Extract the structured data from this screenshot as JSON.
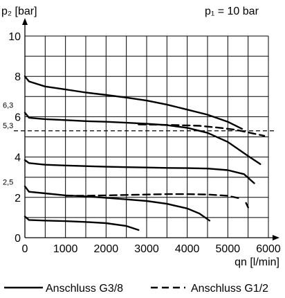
{
  "chart_data": {
    "type": "line",
    "ylabel": "p₂ [bar]",
    "xlabel": "qn [l/min]",
    "annotation": "p₁ = 10 bar",
    "xlim": [
      0,
      6000
    ],
    "ylim": [
      0,
      10
    ],
    "grid": true,
    "x_ticks": [
      "0",
      "1000",
      "2000",
      "3000",
      "4000",
      "5000",
      "6000"
    ],
    "y_ticks": [
      "0",
      "2",
      "4",
      "6",
      "8",
      "10"
    ],
    "extra_y_labels": [
      {
        "value": 6.3,
        "label": "6,3"
      },
      {
        "value": 5.3,
        "label": "5,3"
      },
      {
        "value": 2.5,
        "label": "2,5"
      }
    ],
    "reference_line": {
      "y": 5.3,
      "style": "dashed"
    },
    "legend": {
      "placement": "bottom",
      "entries": [
        {
          "label": "Anschluss G3/8",
          "style": "solid"
        },
        {
          "label": "Anschluss G1/2",
          "style": "dashed"
        }
      ]
    },
    "series": [
      {
        "style": "solid",
        "points": [
          [
            0,
            8.0
          ],
          [
            100,
            7.75
          ],
          [
            500,
            7.5
          ],
          [
            1000,
            7.35
          ],
          [
            1500,
            7.2
          ],
          [
            2000,
            7.08
          ],
          [
            2500,
            6.95
          ],
          [
            3000,
            6.8
          ],
          [
            3500,
            6.6
          ],
          [
            4000,
            6.35
          ],
          [
            4500,
            6.1
          ],
          [
            5000,
            5.75
          ],
          [
            5350,
            5.4
          ]
        ]
      },
      {
        "style": "solid",
        "points": [
          [
            0,
            6.2
          ],
          [
            100,
            5.95
          ],
          [
            500,
            5.88
          ],
          [
            1000,
            5.83
          ],
          [
            1500,
            5.78
          ],
          [
            2000,
            5.75
          ],
          [
            2500,
            5.7
          ],
          [
            3000,
            5.65
          ],
          [
            3500,
            5.58
          ],
          [
            4000,
            5.45
          ],
          [
            4500,
            5.2
          ],
          [
            5000,
            4.75
          ],
          [
            5500,
            4.05
          ],
          [
            5800,
            3.65
          ]
        ]
      },
      {
        "style": "dashed",
        "points": [
          [
            2800,
            5.62
          ],
          [
            3300,
            5.6
          ],
          [
            3800,
            5.58
          ],
          [
            4300,
            5.55
          ],
          [
            4800,
            5.45
          ],
          [
            5200,
            5.35
          ],
          [
            5600,
            5.18
          ],
          [
            5900,
            5.05
          ]
        ]
      },
      {
        "style": "solid",
        "points": [
          [
            0,
            3.85
          ],
          [
            100,
            3.7
          ],
          [
            500,
            3.62
          ],
          [
            1000,
            3.58
          ],
          [
            1500,
            3.55
          ],
          [
            2000,
            3.52
          ],
          [
            2500,
            3.5
          ],
          [
            3000,
            3.48
          ],
          [
            3500,
            3.46
          ],
          [
            4000,
            3.45
          ],
          [
            4500,
            3.43
          ],
          [
            5000,
            3.35
          ],
          [
            5400,
            3.15
          ],
          [
            5650,
            2.7
          ]
        ]
      },
      {
        "style": "solid",
        "points": [
          [
            0,
            2.55
          ],
          [
            100,
            2.28
          ],
          [
            500,
            2.2
          ],
          [
            1000,
            2.1
          ],
          [
            1500,
            2.05
          ],
          [
            2000,
            1.98
          ],
          [
            2500,
            1.9
          ],
          [
            3000,
            1.82
          ],
          [
            3500,
            1.68
          ],
          [
            4000,
            1.45
          ],
          [
            4300,
            1.2
          ],
          [
            4550,
            0.85
          ]
        ]
      },
      {
        "style": "dashed",
        "points": [
          [
            1000,
            2.08
          ],
          [
            1500,
            2.08
          ],
          [
            2000,
            2.1
          ],
          [
            2500,
            2.12
          ],
          [
            3000,
            2.14
          ],
          [
            3500,
            2.16
          ],
          [
            4000,
            2.16
          ],
          [
            4500,
            2.14
          ],
          [
            5000,
            2.08
          ],
          [
            5300,
            1.95
          ]
        ]
      },
      {
        "style": "dashed",
        "points": [
          [
            5450,
            1.72
          ],
          [
            5500,
            1.5
          ]
        ]
      },
      {
        "style": "solid",
        "points": [
          [
            0,
            1.05
          ],
          [
            100,
            0.88
          ],
          [
            500,
            0.85
          ],
          [
            1000,
            0.82
          ],
          [
            1500,
            0.78
          ],
          [
            2000,
            0.72
          ],
          [
            2500,
            0.58
          ],
          [
            2800,
            0.38
          ]
        ]
      }
    ]
  }
}
